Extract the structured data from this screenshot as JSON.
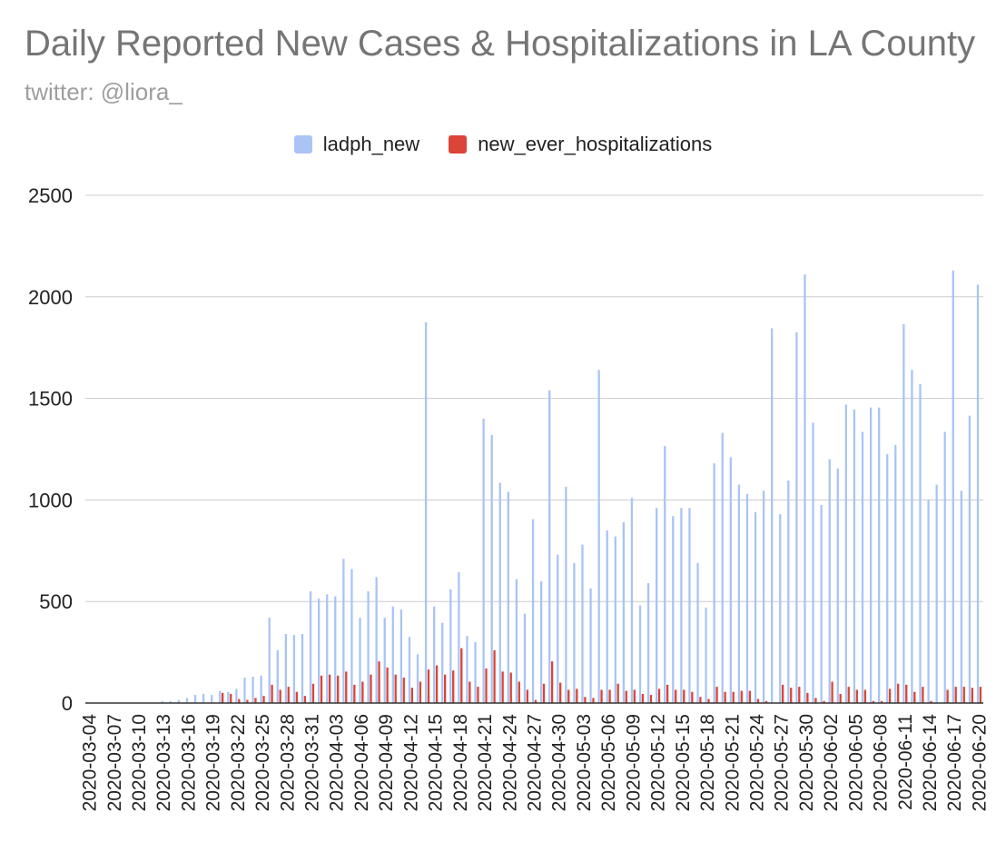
{
  "chart_data": {
    "type": "bar",
    "title": "Daily Reported New Cases & Hospitalizations in LA County",
    "subtitle": "twitter: @liora_",
    "xlabel": "",
    "ylabel": "",
    "ylim": [
      0,
      2500
    ],
    "yticks": [
      0,
      500,
      1000,
      1500,
      2000,
      2500
    ],
    "grid": true,
    "legend_position": "top-center",
    "categories": [
      "2020-03-04",
      "2020-03-05",
      "2020-03-06",
      "2020-03-07",
      "2020-03-08",
      "2020-03-09",
      "2020-03-10",
      "2020-03-11",
      "2020-03-12",
      "2020-03-13",
      "2020-03-14",
      "2020-03-15",
      "2020-03-16",
      "2020-03-17",
      "2020-03-18",
      "2020-03-19",
      "2020-03-20",
      "2020-03-21",
      "2020-03-22",
      "2020-03-23",
      "2020-03-24",
      "2020-03-25",
      "2020-03-26",
      "2020-03-27",
      "2020-03-28",
      "2020-03-29",
      "2020-03-30",
      "2020-03-31",
      "2020-04-01",
      "2020-04-02",
      "2020-04-03",
      "2020-04-04",
      "2020-04-05",
      "2020-04-06",
      "2020-04-07",
      "2020-04-08",
      "2020-04-09",
      "2020-04-10",
      "2020-04-11",
      "2020-04-12",
      "2020-04-13",
      "2020-04-14",
      "2020-04-15",
      "2020-04-16",
      "2020-04-17",
      "2020-04-18",
      "2020-04-19",
      "2020-04-20",
      "2020-04-21",
      "2020-04-22",
      "2020-04-23",
      "2020-04-24",
      "2020-04-25",
      "2020-04-26",
      "2020-04-27",
      "2020-04-28",
      "2020-04-29",
      "2020-04-30",
      "2020-05-01",
      "2020-05-02",
      "2020-05-03",
      "2020-05-04",
      "2020-05-05",
      "2020-05-06",
      "2020-05-07",
      "2020-05-08",
      "2020-05-09",
      "2020-05-10",
      "2020-05-11",
      "2020-05-12",
      "2020-05-13",
      "2020-05-14",
      "2020-05-15",
      "2020-05-16",
      "2020-05-17",
      "2020-05-18",
      "2020-05-19",
      "2020-05-20",
      "2020-05-21",
      "2020-05-22",
      "2020-05-23",
      "2020-05-24",
      "2020-05-25",
      "2020-05-26",
      "2020-05-27",
      "2020-05-28",
      "2020-05-29",
      "2020-05-30",
      "2020-05-31",
      "2020-06-01",
      "2020-06-02",
      "2020-06-03",
      "2020-06-04",
      "2020-06-05",
      "2020-06-06",
      "2020-06-07",
      "2020-06-08",
      "2020-06-09",
      "2020-06-10",
      "2020-06-11",
      "2020-06-12",
      "2020-06-13",
      "2020-06-14",
      "2020-06-15",
      "2020-06-16",
      "2020-06-17",
      "2020-06-18",
      "2020-06-19",
      "2020-06-20"
    ],
    "xtick_labels": [
      "2020-03-04",
      "2020-03-07",
      "2020-03-10",
      "2020-03-13",
      "2020-03-16",
      "2020-03-19",
      "2020-03-22",
      "2020-03-25",
      "2020-03-28",
      "2020-03-31",
      "2020-04-03",
      "2020-04-06",
      "2020-04-09",
      "2020-04-12",
      "2020-04-15",
      "2020-04-18",
      "2020-04-21",
      "2020-04-24",
      "2020-04-27",
      "2020-04-30",
      "2020-05-03",
      "2020-05-06",
      "2020-05-09",
      "2020-05-12",
      "2020-05-15",
      "2020-05-18",
      "2020-05-21",
      "2020-05-24",
      "2020-05-27",
      "2020-05-30",
      "2020-06-02",
      "2020-06-05",
      "2020-06-08",
      "2020-06-11",
      "2020-06-14",
      "2020-06-17",
      "2020-06-20"
    ],
    "series": [
      {
        "name": "ladph_new",
        "color": "#a9c4f5",
        "values": [
          0,
          0,
          0,
          0,
          0,
          0,
          0,
          0,
          0,
          10,
          10,
          15,
          25,
          40,
          45,
          40,
          60,
          55,
          70,
          125,
          130,
          135,
          420,
          260,
          340,
          335,
          340,
          550,
          515,
          535,
          525,
          710,
          660,
          420,
          550,
          620,
          420,
          475,
          460,
          325,
          240,
          1875,
          475,
          395,
          560,
          645,
          330,
          300,
          1400,
          1320,
          1085,
          1040,
          610,
          440,
          905,
          600,
          1540,
          730,
          1065,
          690,
          780,
          565,
          1640,
          850,
          820,
          890,
          1010,
          480,
          590,
          960,
          1265,
          920,
          960,
          960,
          690,
          470,
          1180,
          1330,
          1210,
          1075,
          1030,
          940,
          1045,
          1845,
          930,
          1095,
          1825,
          2110,
          1380,
          975,
          1200,
          1155,
          1470,
          1445,
          1335,
          1455,
          1455,
          1225,
          1270,
          1865,
          1640,
          1570,
          1000,
          1075,
          1335,
          2130,
          1045,
          1415,
          2060
        ]
      },
      {
        "name": "new_ever_hospitalizations",
        "color": "#db4437",
        "values": [
          0,
          0,
          0,
          0,
          0,
          0,
          0,
          0,
          0,
          0,
          0,
          0,
          0,
          0,
          0,
          0,
          50,
          45,
          20,
          15,
          25,
          35,
          90,
          65,
          80,
          55,
          35,
          95,
          135,
          140,
          135,
          155,
          90,
          105,
          140,
          205,
          175,
          140,
          125,
          75,
          105,
          165,
          185,
          140,
          160,
          270,
          105,
          80,
          170,
          260,
          155,
          150,
          105,
          65,
          15,
          95,
          205,
          100,
          65,
          70,
          30,
          25,
          65,
          65,
          95,
          60,
          65,
          45,
          40,
          70,
          90,
          65,
          65,
          55,
          30,
          20,
          80,
          55,
          55,
          60,
          60,
          20,
          10,
          0,
          90,
          75,
          80,
          50,
          25,
          10,
          105,
          45,
          80,
          65,
          65,
          10,
          10,
          70,
          95,
          90,
          55,
          80,
          10,
          0,
          65,
          80,
          80,
          75,
          80
        ]
      }
    ]
  }
}
